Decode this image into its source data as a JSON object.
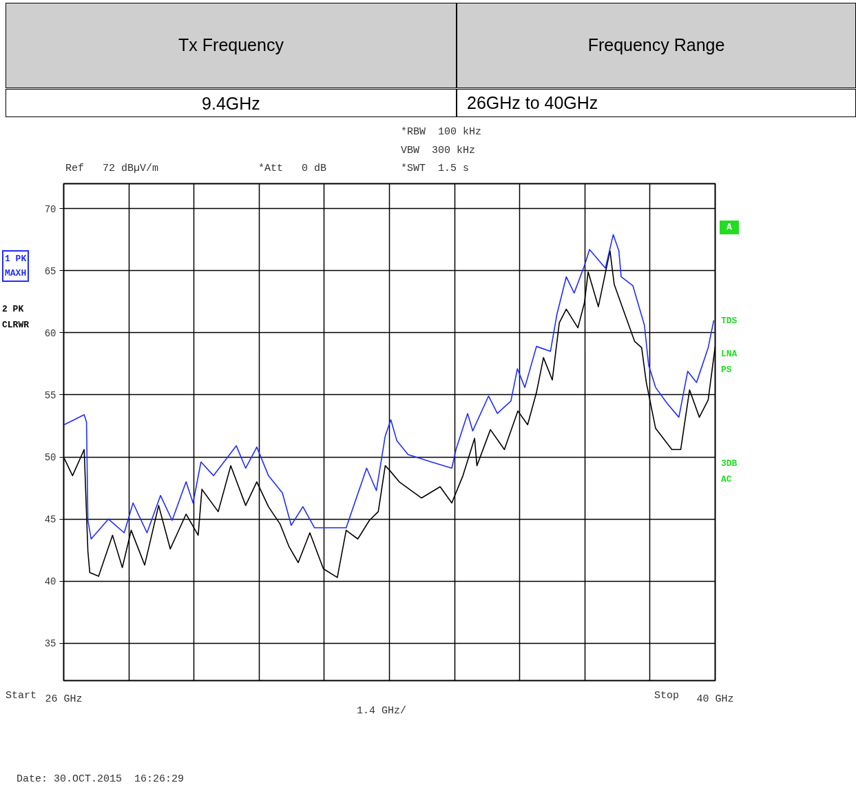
{
  "chart_data": {
    "type": "line",
    "annotations": [
      "Tx Frequency",
      "Frequency Range",
      "9.4GHz",
      "26GHz to 40GHz",
      "Ref   72 dBµV/m",
      "*Att   0 dB",
      "*RBW  100 kHz",
      "VBW  300 kHz",
      "*SWT  1.5 s",
      "A",
      "TDS",
      "LNA\nPS",
      "3DB\nAC",
      "Start",
      "1.4 GHz/",
      "Stop",
      "Date: 30.OCT.2015  16:26:29"
    ],
    "xlim": [
      26,
      40
    ],
    "xticks": [
      {
        "value": 26,
        "label": "26 GHz"
      },
      {
        "value": 27.4,
        "label": null
      },
      {
        "value": 28.8,
        "label": null
      },
      {
        "value": 30.2,
        "label": null
      },
      {
        "value": 31.6,
        "label": null
      },
      {
        "value": 33,
        "label": null
      },
      {
        "value": 34.4,
        "label": null
      },
      {
        "value": 35.8,
        "label": null
      },
      {
        "value": 37.2,
        "label": null
      },
      {
        "value": 38.6,
        "label": null
      },
      {
        "value": 40,
        "label": "40 GHz"
      }
    ],
    "ylim": [
      32,
      72
    ],
    "yticks": [
      35,
      40,
      45,
      50,
      55,
      60,
      65,
      70
    ],
    "grid": true,
    "legend": "left",
    "series": [
      {
        "name": "1 PK\nMAXH",
        "color": "#1f2dff",
        "x": [
          26.01,
          26.44,
          26.49,
          26.52,
          26.59,
          26.96,
          27.3,
          27.49,
          27.79,
          28.08,
          28.33,
          28.63,
          28.78,
          28.95,
          29.22,
          29.71,
          29.91,
          30.15,
          30.4,
          30.7,
          30.89,
          31.14,
          31.39,
          32.07,
          32.51,
          32.72,
          32.91,
          33.03,
          33.16,
          33.4,
          33.9,
          34.34,
          34.43,
          34.68,
          34.79,
          35.13,
          35.32,
          35.61,
          35.75,
          35.91,
          36.16,
          36.46,
          36.6,
          36.8,
          36.97,
          37.19,
          37.3,
          37.64,
          37.81,
          37.93,
          37.98,
          38.23,
          38.48,
          38.57,
          38.72,
          38.97,
          39.22,
          39.41,
          39.6,
          39.85,
          39.97
        ],
        "values": [
          52.6,
          53.4,
          52.8,
          44.9,
          43.4,
          45.0,
          43.9,
          46.3,
          43.9,
          46.9,
          44.9,
          48.0,
          46.3,
          49.6,
          48.5,
          50.9,
          49.1,
          50.8,
          48.5,
          47.1,
          44.5,
          46.0,
          44.3,
          44.3,
          49.1,
          47.3,
          51.7,
          53.0,
          51.3,
          50.2,
          49.6,
          49.1,
          50.6,
          53.5,
          52.1,
          54.9,
          53.5,
          54.5,
          57.1,
          55.6,
          58.9,
          58.5,
          61.5,
          64.5,
          63.2,
          65.4,
          66.7,
          65.2,
          67.9,
          66.6,
          64.5,
          63.8,
          60.6,
          57.4,
          55.6,
          54.3,
          53.2,
          56.9,
          56.0,
          58.8,
          61.0
        ]
      },
      {
        "name": "2 PK\nCLRWR",
        "color": "#000000",
        "x": [
          26.01,
          26.19,
          26.44,
          26.52,
          26.56,
          26.75,
          27.05,
          27.26,
          27.45,
          27.74,
          28.04,
          28.29,
          28.63,
          28.89,
          28.97,
          29.32,
          29.59,
          29.91,
          30.15,
          30.4,
          30.65,
          30.84,
          31.04,
          31.29,
          31.58,
          31.88,
          32.07,
          32.32,
          32.57,
          32.76,
          32.91,
          33.01,
          33.21,
          33.69,
          34.09,
          34.34,
          34.58,
          34.83,
          34.88,
          35.17,
          35.47,
          35.76,
          35.97,
          36.16,
          36.31,
          36.5,
          36.65,
          36.8,
          37.05,
          37.19,
          37.27,
          37.49,
          37.74,
          37.83,
          38.04,
          38.27,
          38.42,
          38.52,
          38.72,
          39.07,
          39.26,
          39.45,
          39.66,
          39.85,
          40.0
        ],
        "values": [
          49.9,
          48.5,
          50.6,
          42.4,
          40.7,
          40.4,
          43.7,
          41.1,
          44.1,
          41.3,
          46.1,
          42.6,
          45.4,
          43.7,
          47.4,
          45.6,
          49.3,
          46.1,
          48.0,
          46.0,
          44.6,
          42.8,
          41.5,
          43.9,
          41.0,
          40.3,
          44.1,
          43.4,
          44.9,
          45.6,
          49.3,
          48.9,
          48.0,
          46.7,
          47.6,
          46.3,
          48.5,
          51.5,
          49.3,
          52.2,
          50.6,
          53.7,
          52.6,
          55.2,
          58.0,
          56.2,
          60.8,
          61.9,
          60.4,
          62.4,
          64.9,
          62.1,
          66.6,
          63.9,
          61.7,
          59.3,
          58.8,
          56.0,
          52.3,
          50.6,
          50.6,
          55.4,
          53.2,
          54.6,
          58.9
        ]
      }
    ]
  }
}
